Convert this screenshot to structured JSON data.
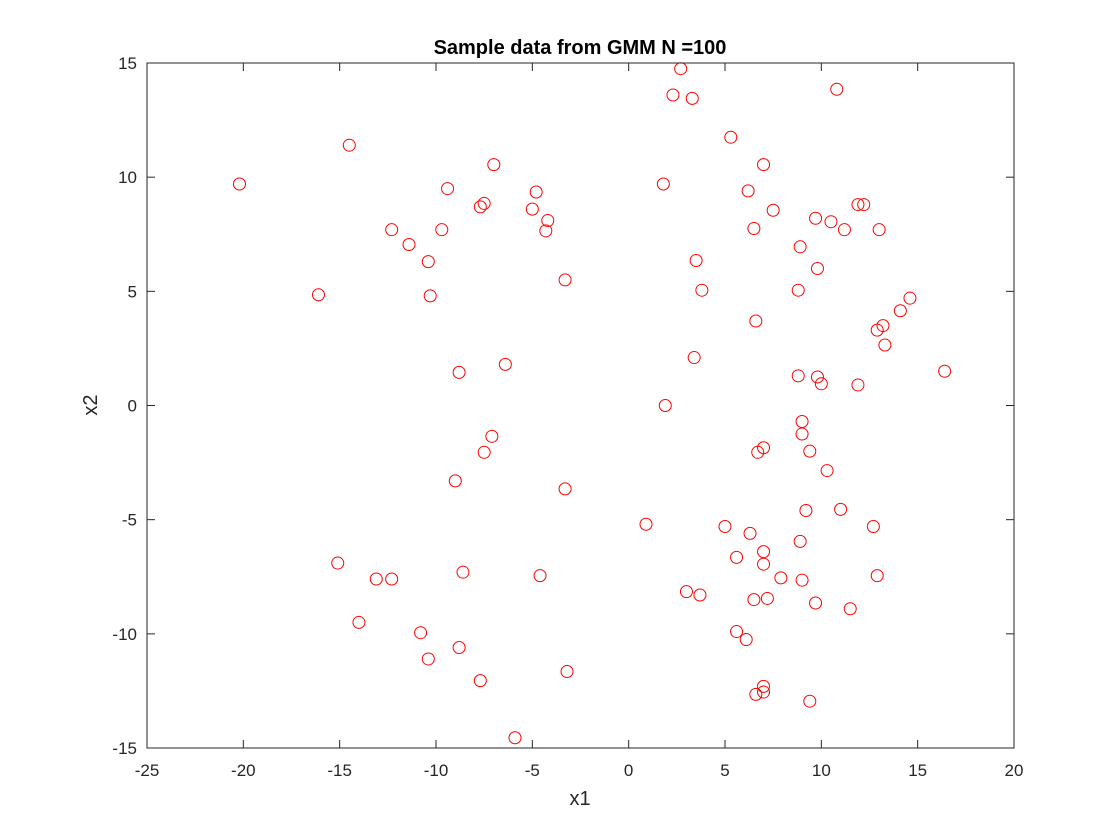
{
  "chart_data": {
    "type": "scatter",
    "title": "Sample data from GMM N =100",
    "xlabel": "x1",
    "ylabel": "x2",
    "xlim": [
      -25,
      20
    ],
    "ylim": [
      -15,
      15
    ],
    "xticks": [
      "-25",
      "-20",
      "-15",
      "-10",
      "-5",
      "0",
      "5",
      "10",
      "15",
      "20"
    ],
    "yticks": [
      "-15",
      "-10",
      "-5",
      "0",
      "5",
      "10",
      "15"
    ],
    "grid": false,
    "marker": "open-circle",
    "color": "#ff0000",
    "axis_color": "#262626",
    "points": [
      [
        2.7,
        14.75
      ],
      [
        2.3,
        13.6
      ],
      [
        3.3,
        13.45
      ],
      [
        10.8,
        13.85
      ],
      [
        -14.5,
        11.4
      ],
      [
        5.3,
        11.75
      ],
      [
        -7.0,
        10.55
      ],
      [
        7.0,
        10.55
      ],
      [
        -20.2,
        9.7
      ],
      [
        -9.4,
        9.5
      ],
      [
        -4.8,
        9.35
      ],
      [
        1.8,
        9.7
      ],
      [
        6.2,
        9.4
      ],
      [
        -7.7,
        8.7
      ],
      [
        -7.5,
        8.85
      ],
      [
        -5.0,
        8.6
      ],
      [
        -4.2,
        8.1
      ],
      [
        7.5,
        8.55
      ],
      [
        9.7,
        8.2
      ],
      [
        10.5,
        8.05
      ],
      [
        11.9,
        8.8
      ],
      [
        12.2,
        8.8
      ],
      [
        -12.3,
        7.7
      ],
      [
        -9.7,
        7.7
      ],
      [
        -4.3,
        7.65
      ],
      [
        6.5,
        7.75
      ],
      [
        11.2,
        7.7
      ],
      [
        13.0,
        7.7
      ],
      [
        -11.4,
        7.05
      ],
      [
        8.9,
        6.95
      ],
      [
        -10.4,
        6.3
      ],
      [
        3.5,
        6.35
      ],
      [
        9.8,
        6.0
      ],
      [
        -3.3,
        5.5
      ],
      [
        -16.1,
        4.85
      ],
      [
        -10.3,
        4.8
      ],
      [
        3.8,
        5.05
      ],
      [
        8.8,
        5.05
      ],
      [
        14.6,
        4.7
      ],
      [
        14.1,
        4.15
      ],
      [
        6.6,
        3.7
      ],
      [
        13.2,
        3.5
      ],
      [
        12.9,
        3.3
      ],
      [
        13.3,
        2.65
      ],
      [
        3.4,
        2.1
      ],
      [
        -6.4,
        1.8
      ],
      [
        -8.8,
        1.45
      ],
      [
        8.8,
        1.3
      ],
      [
        9.8,
        1.25
      ],
      [
        10.0,
        0.95
      ],
      [
        11.9,
        0.9
      ],
      [
        16.4,
        1.5
      ],
      [
        1.9,
        0.0
      ],
      [
        9.0,
        -0.7
      ],
      [
        9.0,
        -1.25
      ],
      [
        -7.1,
        -1.35
      ],
      [
        7.0,
        -1.85
      ],
      [
        9.4,
        -2.0
      ],
      [
        -7.5,
        -2.05
      ],
      [
        6.7,
        -2.05
      ],
      [
        10.3,
        -2.85
      ],
      [
        -9.0,
        -3.3
      ],
      [
        -3.3,
        -3.65
      ],
      [
        9.2,
        -4.6
      ],
      [
        11.0,
        -4.55
      ],
      [
        0.9,
        -5.2
      ],
      [
        5.0,
        -5.3
      ],
      [
        6.3,
        -5.6
      ],
      [
        12.7,
        -5.3
      ],
      [
        8.9,
        -5.95
      ],
      [
        7.0,
        -6.4
      ],
      [
        5.6,
        -6.65
      ],
      [
        -15.1,
        -6.9
      ],
      [
        7.0,
        -6.95
      ],
      [
        -8.6,
        -7.3
      ],
      [
        -4.6,
        -7.45
      ],
      [
        -13.1,
        -7.6
      ],
      [
        -12.3,
        -7.6
      ],
      [
        7.9,
        -7.55
      ],
      [
        9.0,
        -7.65
      ],
      [
        12.9,
        -7.45
      ],
      [
        3.0,
        -8.15
      ],
      [
        3.7,
        -8.3
      ],
      [
        6.5,
        -8.5
      ],
      [
        7.2,
        -8.45
      ],
      [
        9.7,
        -8.65
      ],
      [
        11.5,
        -8.9
      ],
      [
        -14.0,
        -9.5
      ],
      [
        -10.8,
        -9.95
      ],
      [
        5.6,
        -9.9
      ],
      [
        6.1,
        -10.25
      ],
      [
        -8.8,
        -10.6
      ],
      [
        -10.4,
        -11.1
      ],
      [
        -3.2,
        -11.65
      ],
      [
        -7.7,
        -12.05
      ],
      [
        7.0,
        -12.3
      ],
      [
        7.0,
        -12.55
      ],
      [
        6.6,
        -12.65
      ],
      [
        9.4,
        -12.95
      ],
      [
        -5.9,
        -14.55
      ]
    ]
  }
}
